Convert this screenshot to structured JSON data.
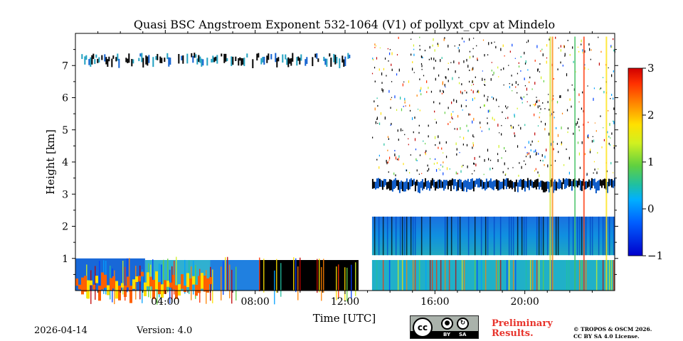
{
  "chart_data": {
    "type": "heatmap",
    "title": "Quasi BSC Angstroem Exponent 532-1064 (V1) of pollyxt_cpv at Mindelo",
    "xlabel": "Time [UTC]",
    "ylabel": "Height [km]",
    "xlim": [
      0,
      24
    ],
    "ylim": [
      0,
      8
    ],
    "x_ticks": [
      4,
      8,
      12,
      16,
      20
    ],
    "x_tick_labels": [
      "04:00",
      "08:00",
      "12:00",
      "16:00",
      "20:00"
    ],
    "y_ticks": [
      1,
      2,
      3,
      4,
      5,
      6,
      7
    ],
    "y_tick_labels": [
      "1",
      "2",
      "3",
      "4",
      "5",
      "6",
      "7"
    ],
    "colorbar": {
      "min": -1,
      "max": 3,
      "ticks": [
        3,
        2,
        1,
        0,
        -1
      ],
      "tick_labels": [
        "3",
        "2",
        "1",
        "0",
        "−1"
      ],
      "colormap": "jet"
    },
    "layers": [
      {
        "name": "cirrus-upper",
        "t_start": 0.2,
        "t_end": 12.2,
        "h_bottom": 7.1,
        "h_top": 7.4
      },
      {
        "name": "boundary-morning",
        "t_start": 0,
        "t_end": 12.6,
        "h_bottom": 0,
        "h_top": 1.05
      },
      {
        "name": "cloud-evening",
        "t_start": 13.2,
        "t_end": 24,
        "h_bottom": 3.0,
        "h_top": 3.5
      },
      {
        "name": "aerosol-evening",
        "t_start": 13.2,
        "t_end": 24,
        "h_bottom": 1.1,
        "h_top": 2.3
      },
      {
        "name": "boundary-evening",
        "t_start": 13.2,
        "t_end": 24,
        "h_bottom": 0,
        "h_top": 0.95
      }
    ]
  },
  "footer": {
    "date": "2026-04-14",
    "version": "Version: 4.0",
    "cc_label": "cc",
    "by_label": "BY",
    "sa_label": "SA",
    "prelim_line1": "Preliminary",
    "prelim_line2": "Results.",
    "copyright_line1": "© TROPOS & OSCM 2026.",
    "copyright_line2": "CC BY SA 4.0 License."
  },
  "colors": {
    "low": "#00008f",
    "mid": "#00a0ff",
    "neutral": "#20b0a0",
    "high": "#ffff00",
    "max": "#800000"
  }
}
